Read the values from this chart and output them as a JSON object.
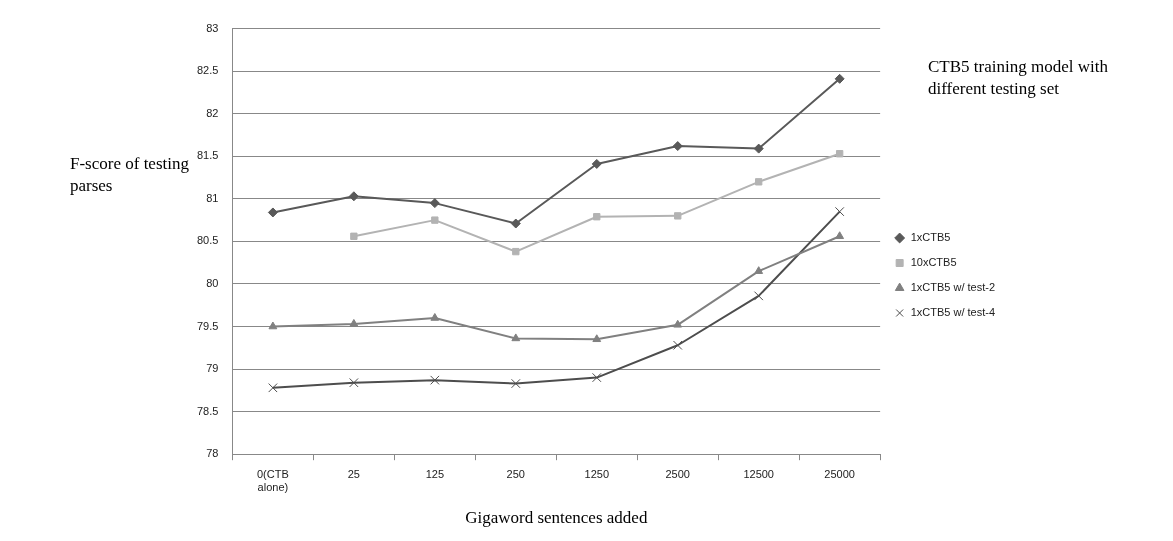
{
  "chart_data": {
    "type": "line",
    "title": "CTB5 training model with different testing set",
    "xlabel": "Gigaword sentences added",
    "ylabel": "F-score of testing parses",
    "categories": [
      "0(CTB alone)",
      "25",
      "125",
      "250",
      "1250",
      "2500",
      "12500",
      "25000"
    ],
    "series": [
      {
        "name": "1xCTB5",
        "color": "#595959",
        "marker": "diamond",
        "values": [
          80.84,
          81.03,
          80.95,
          80.71,
          81.41,
          81.62,
          81.59,
          82.41
        ]
      },
      {
        "name": "10xCTB5",
        "color": "#b3b3b3",
        "marker": "square",
        "values": [
          null,
          80.56,
          80.75,
          80.38,
          80.79,
          80.8,
          81.2,
          81.53
        ]
      },
      {
        "name": "1xCTB5 w/ test-2",
        "color": "#808080",
        "marker": "triangle",
        "values": [
          79.5,
          79.53,
          79.6,
          79.36,
          79.35,
          79.52,
          80.15,
          80.56
        ]
      },
      {
        "name": "1xCTB5 w/ test-4",
        "color": "#4d4d4d",
        "marker": "cross",
        "values": [
          78.78,
          78.84,
          78.87,
          78.83,
          78.9,
          79.28,
          79.86,
          80.85
        ]
      }
    ],
    "ylim": [
      78,
      83
    ],
    "yticks": [
      78,
      78.5,
      79,
      79.5,
      80,
      80.5,
      81,
      81.5,
      82,
      82.5,
      83
    ],
    "grid": "y",
    "legend": "right"
  }
}
